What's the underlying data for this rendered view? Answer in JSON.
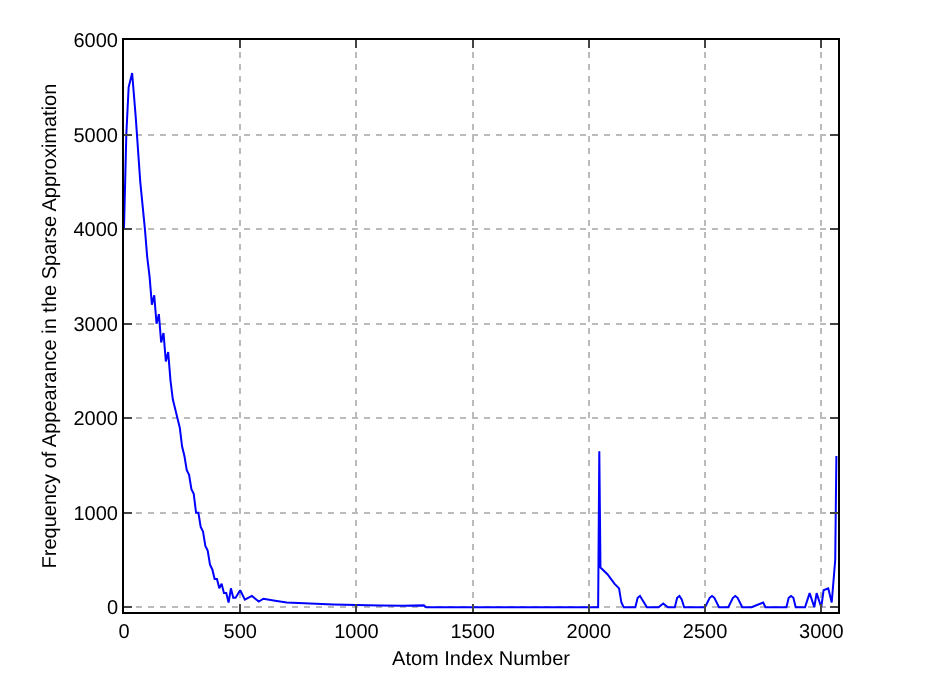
{
  "chart_data": {
    "type": "line",
    "xlabel": "Atom Index Number",
    "ylabel": "Frequency of Appearance in the Sparse Approximation",
    "x": [
      0,
      10,
      20,
      35,
      50,
      70,
      90,
      100,
      110,
      120,
      130,
      140,
      150,
      160,
      170,
      180,
      190,
      200,
      210,
      220,
      230,
      240,
      250,
      260,
      270,
      280,
      290,
      300,
      310,
      320,
      330,
      340,
      350,
      360,
      370,
      380,
      390,
      400,
      410,
      420,
      430,
      440,
      450,
      460,
      470,
      480,
      500,
      520,
      550,
      580,
      600,
      650,
      700,
      800,
      900,
      1000,
      1100,
      1200,
      1290,
      1300,
      2040,
      2045,
      2050,
      2080,
      2110,
      2130,
      2140,
      2150,
      2200,
      2210,
      2220,
      2230,
      2250,
      2300,
      2320,
      2340,
      2370,
      2380,
      2390,
      2400,
      2410,
      2500,
      2520,
      2530,
      2540,
      2560,
      2600,
      2620,
      2630,
      2640,
      2660,
      2700,
      2750,
      2760,
      2850,
      2860,
      2870,
      2880,
      2890,
      2930,
      2950,
      2970,
      2980,
      3000,
      3010,
      3030,
      3045,
      3060,
      3065
    ],
    "series": [
      {
        "color": "#0000ff",
        "values": [
          4000,
          5000,
          5500,
          5650,
          5200,
          4500,
          4000,
          3700,
          3500,
          3200,
          3300,
          3000,
          3100,
          2800,
          2900,
          2600,
          2700,
          2400,
          2200,
          2100,
          2000,
          1900,
          1700,
          1600,
          1450,
          1400,
          1250,
          1200,
          1000,
          1000,
          850,
          800,
          650,
          600,
          450,
          400,
          300,
          300,
          200,
          250,
          150,
          150,
          50,
          200,
          100,
          100,
          180,
          80,
          120,
          60,
          90,
          70,
          50,
          40,
          30,
          25,
          20,
          15,
          20,
          0,
          0,
          1650,
          420,
          350,
          250,
          200,
          50,
          0,
          0,
          100,
          120,
          80,
          0,
          0,
          40,
          0,
          0,
          100,
          120,
          80,
          0,
          0,
          100,
          120,
          100,
          0,
          0,
          100,
          120,
          100,
          0,
          0,
          50,
          0,
          0,
          100,
          120,
          100,
          0,
          0,
          150,
          0,
          150,
          0,
          180,
          200,
          50,
          500,
          1600
        ]
      }
    ],
    "xlim": [
      0,
      3072
    ],
    "ylim": [
      -50,
      6000
    ],
    "xticks": [
      0,
      500,
      1000,
      1500,
      2000,
      2500,
      3000
    ],
    "yticks": [
      0,
      1000,
      2000,
      3000,
      4000,
      5000,
      6000
    ],
    "grid": true,
    "marker": "none",
    "line_style": "solid"
  }
}
